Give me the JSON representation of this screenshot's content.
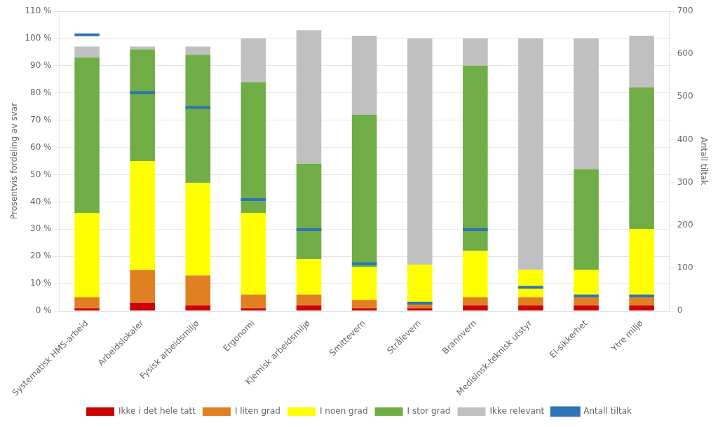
{
  "chart_data": {
    "type": "bar",
    "stacked": true,
    "categories": [
      "Systematisk HMS-arbeid",
      "Arbeidslokaler",
      "Fysisk arbeidsmiljø",
      "Ergonomi",
      "Kjemisk arbeidsmiljø",
      "Smittevern",
      "Strålevern",
      "Brannvern",
      "Medisinsk-teknisk utstyr",
      "El-sikkerhet",
      "Ytre miljø"
    ],
    "series": [
      {
        "name": "Ikke i det hele tatt",
        "color": "#cc0000",
        "values": [
          1,
          3,
          2,
          1,
          2,
          1,
          1,
          2,
          2,
          2,
          2
        ]
      },
      {
        "name": "I liten grad",
        "color": "#e08020",
        "values": [
          4,
          12,
          11,
          5,
          4,
          3,
          2,
          3,
          3,
          3,
          3
        ]
      },
      {
        "name": "I noen grad",
        "color": "#ffff00",
        "values": [
          31,
          40,
          34,
          30,
          13,
          12,
          14,
          17,
          10,
          10,
          25
        ]
      },
      {
        "name": "I stor grad",
        "color": "#70ad47",
        "values": [
          57,
          41,
          47,
          48,
          35,
          56,
          0,
          68,
          0,
          37,
          52
        ]
      },
      {
        "name": "Ikke relevant",
        "color": "#c0c0c0",
        "values": [
          4,
          1,
          3,
          16,
          49,
          29,
          83,
          10,
          85,
          48,
          19
        ]
      },
      {
        "name": "Antall tiltak",
        "color": "#2e74b5",
        "values": [
          645,
          510,
          475,
          260,
          190,
          110,
          18,
          190,
          55,
          35,
          35
        ],
        "axis": "y2",
        "type": "line",
        "marker": "line",
        "line_style": "none"
      }
    ],
    "ylabel": "Prosentvis fordeling av svar",
    "y2label": "Antall tiltak",
    "ylim": [
      0,
      110
    ],
    "yticks": [
      {
        "value": 0,
        "label": "0 %"
      },
      {
        "value": 10,
        "label": "10 %"
      },
      {
        "value": 20,
        "label": "20 %"
      },
      {
        "value": 30,
        "label": "30 %"
      },
      {
        "value": 40,
        "label": "40 %"
      },
      {
        "value": 50,
        "label": "50 %"
      },
      {
        "value": 60,
        "label": "60 %"
      },
      {
        "value": 70,
        "label": "70 %"
      },
      {
        "value": 80,
        "label": "80 %"
      },
      {
        "value": 90,
        "label": "90 %"
      },
      {
        "value": 100,
        "label": "100 %"
      },
      {
        "value": 110,
        "label": "110 %"
      }
    ],
    "y2lim": [
      0,
      700
    ],
    "y2ticks": [
      0,
      100,
      200,
      300,
      400,
      500,
      600,
      700
    ],
    "grid": true,
    "legend": "bottom"
  }
}
